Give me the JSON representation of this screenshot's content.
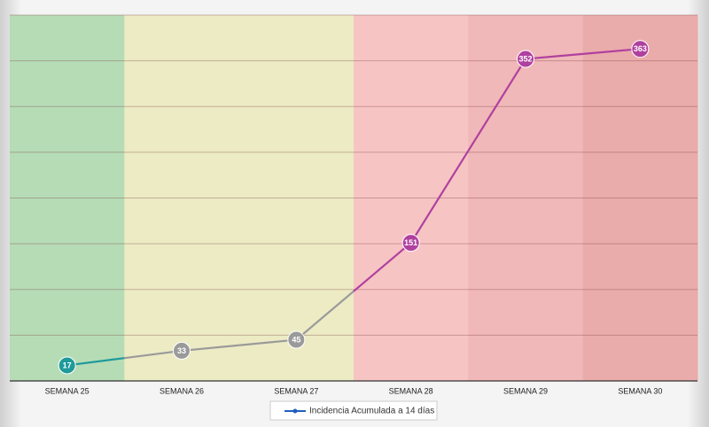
{
  "chart_data": {
    "type": "line",
    "categories": [
      "SEMANA 25",
      "SEMANA 26",
      "SEMANA 27",
      "SEMANA 28",
      "SEMANA 29",
      "SEMANA 30"
    ],
    "series": [
      {
        "name": "Incidencia Acumulada a 14 días",
        "color": "#1f5fbf",
        "values": [
          17,
          33,
          45,
          151,
          352,
          363
        ]
      }
    ],
    "point_colors": [
      "#1e9a9a",
      "#9a9a9a",
      "#9a9a9a",
      "#b0409f",
      "#b0409f",
      "#b0409f"
    ],
    "background_colors": [
      "#b6dcb6",
      "#ecebc4",
      "#ecebc4",
      "#f7c4c4",
      "#f0b8b8",
      "#eaabab"
    ],
    "ylim": [
      0,
      400
    ],
    "yticks": [
      0,
      50,
      100,
      150,
      200,
      250,
      300,
      350,
      400
    ],
    "grid": true,
    "legend": "bottom"
  }
}
